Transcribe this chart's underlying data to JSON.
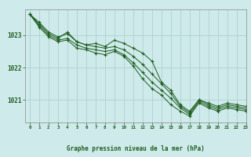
{
  "title": "Graphe pression niveau de la mer (hPa)",
  "background_color": "#ceeaea",
  "grid_color": "#a8cccc",
  "line_color": "#1e5c1e",
  "marker_color": "#1e5c1e",
  "xlim": [
    -0.5,
    23
  ],
  "ylim": [
    1020.3,
    1023.8
  ],
  "yticks": [
    1021,
    1022,
    1023
  ],
  "xticks": [
    0,
    1,
    2,
    3,
    4,
    5,
    6,
    7,
    8,
    9,
    10,
    11,
    12,
    13,
    14,
    15,
    16,
    17,
    18,
    19,
    20,
    21,
    22,
    23
  ],
  "series": [
    [
      1023.65,
      1023.4,
      1023.1,
      1022.95,
      1023.05,
      1022.8,
      1022.7,
      1022.75,
      1022.65,
      1022.85,
      1022.75,
      1022.6,
      1022.45,
      1022.2,
      1021.55,
      1021.3,
      1020.85,
      1020.65,
      1021.0,
      1020.9,
      1020.8,
      1020.9,
      1020.85,
      1020.8
    ],
    [
      1023.65,
      1023.35,
      1023.05,
      1022.9,
      1023.1,
      1022.8,
      1022.7,
      1022.65,
      1022.6,
      1022.65,
      1022.55,
      1022.35,
      1022.1,
      1021.8,
      1021.5,
      1021.2,
      1020.8,
      1020.6,
      1021.0,
      1020.85,
      1020.75,
      1020.85,
      1020.8,
      1020.75
    ],
    [
      1023.65,
      1023.3,
      1023.0,
      1022.85,
      1022.9,
      1022.7,
      1022.6,
      1022.55,
      1022.5,
      1022.55,
      1022.4,
      1022.15,
      1021.85,
      1021.55,
      1021.3,
      1021.05,
      1020.75,
      1020.55,
      1020.95,
      1020.8,
      1020.7,
      1020.8,
      1020.75,
      1020.7
    ],
    [
      1023.65,
      1023.25,
      1022.95,
      1022.8,
      1022.85,
      1022.6,
      1022.55,
      1022.45,
      1022.4,
      1022.5,
      1022.35,
      1022.05,
      1021.65,
      1021.35,
      1021.15,
      1020.85,
      1020.65,
      1020.5,
      1020.9,
      1020.75,
      1020.65,
      1020.75,
      1020.7,
      1020.65
    ]
  ]
}
